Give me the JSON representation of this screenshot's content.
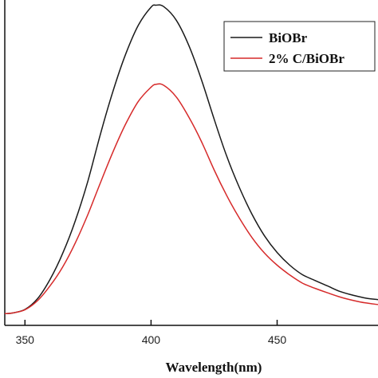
{
  "chart_data": {
    "type": "line",
    "xlabel": "Wavelength(nm)",
    "ylabel": "",
    "xlim": [
      342,
      490
    ],
    "ylim": [
      0,
      1
    ],
    "x_ticks": [
      350,
      400,
      450
    ],
    "x_tick_labels": [
      "350",
      "400",
      "450"
    ],
    "y_ticks_labeled": false,
    "legend_position": "top-right",
    "grid": false,
    "x": [
      342,
      345,
      350,
      355,
      360,
      365,
      370,
      375,
      380,
      385,
      390,
      395,
      400,
      402,
      405,
      410,
      415,
      420,
      425,
      430,
      435,
      440,
      445,
      450,
      455,
      460,
      465,
      470,
      475,
      480,
      485,
      490
    ],
    "series": [
      {
        "name": "BiOBr",
        "color": "#1a1a1a",
        "values": [
          0.036,
          0.038,
          0.049,
          0.082,
          0.142,
          0.222,
          0.322,
          0.445,
          0.59,
          0.722,
          0.835,
          0.923,
          0.978,
          0.984,
          0.98,
          0.938,
          0.86,
          0.755,
          0.634,
          0.52,
          0.424,
          0.342,
          0.275,
          0.224,
          0.185,
          0.156,
          0.138,
          0.121,
          0.104,
          0.093,
          0.084,
          0.079
        ]
      },
      {
        "name": "2% C/BiOBr",
        "color": "#d62a2a",
        "values": [
          0.036,
          0.038,
          0.048,
          0.076,
          0.122,
          0.18,
          0.254,
          0.342,
          0.44,
          0.535,
          0.62,
          0.689,
          0.732,
          0.741,
          0.738,
          0.702,
          0.64,
          0.565,
          0.478,
          0.399,
          0.33,
          0.27,
          0.222,
          0.185,
          0.155,
          0.13,
          0.114,
          0.1,
          0.087,
          0.077,
          0.069,
          0.064
        ]
      }
    ]
  }
}
